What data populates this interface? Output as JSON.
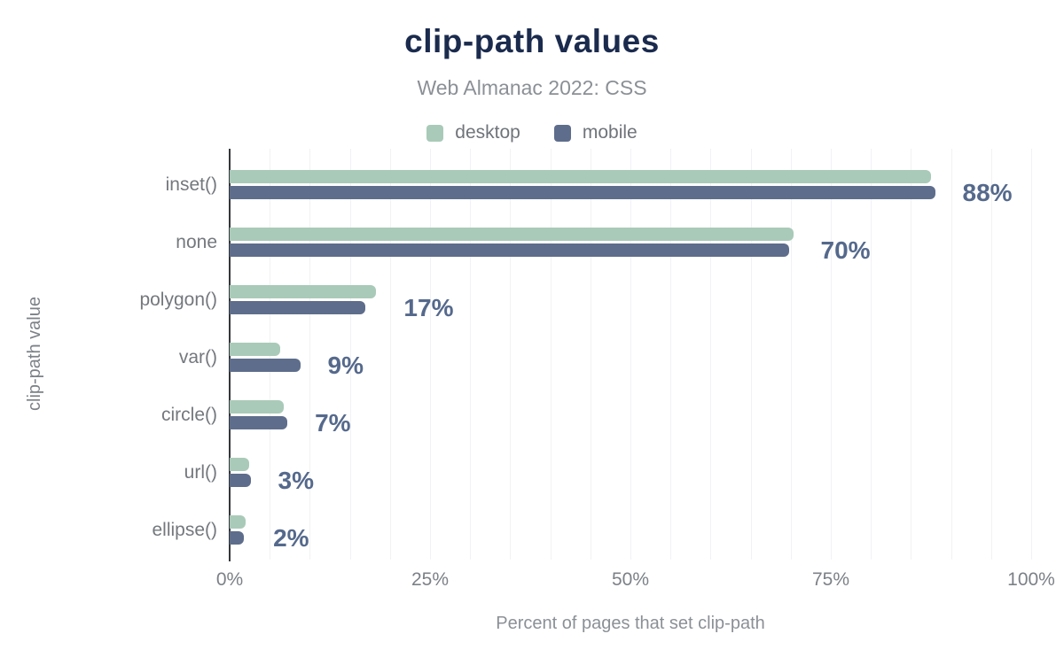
{
  "chart_data": {
    "type": "bar",
    "orientation": "horizontal",
    "title": "clip-path values",
    "subtitle": "Web Almanac 2022: CSS",
    "xlabel": "Percent of pages that set clip-path",
    "ylabel": "clip-path value",
    "categories": [
      "inset()",
      "none",
      "polygon()",
      "var()",
      "circle()",
      "url()",
      "ellipse()"
    ],
    "series": [
      {
        "name": "desktop",
        "color": "#a9cab8",
        "values": [
          87.5,
          70.3,
          18.3,
          6.3,
          6.8,
          2.4,
          2.0
        ]
      },
      {
        "name": "mobile",
        "color": "#5e6d8b",
        "values": [
          88.0,
          69.8,
          16.9,
          8.8,
          7.2,
          2.6,
          1.8
        ]
      }
    ],
    "value_labels": [
      "88%",
      "70%",
      "17%",
      "9%",
      "7%",
      "3%",
      "2%"
    ],
    "xlim": [
      0,
      100
    ],
    "x_tick_labels": [
      "0%",
      "25%",
      "50%",
      "75%",
      "100%"
    ],
    "x_tick_percents": [
      0,
      25,
      50,
      75,
      100
    ],
    "grid": {
      "vertical_step_percent": 5,
      "horizontal": false
    },
    "legend_position": "top"
  },
  "colors": {
    "title": "#1b2b4e",
    "subtitle": "#8b9096",
    "legend_text": "#6f747a",
    "category_label": "#74787d",
    "tick_label": "#7c8187",
    "axis_line": "#34373c",
    "gridline": "#f2f2f4",
    "value_label": "#55698c",
    "background": "#ffffff"
  }
}
